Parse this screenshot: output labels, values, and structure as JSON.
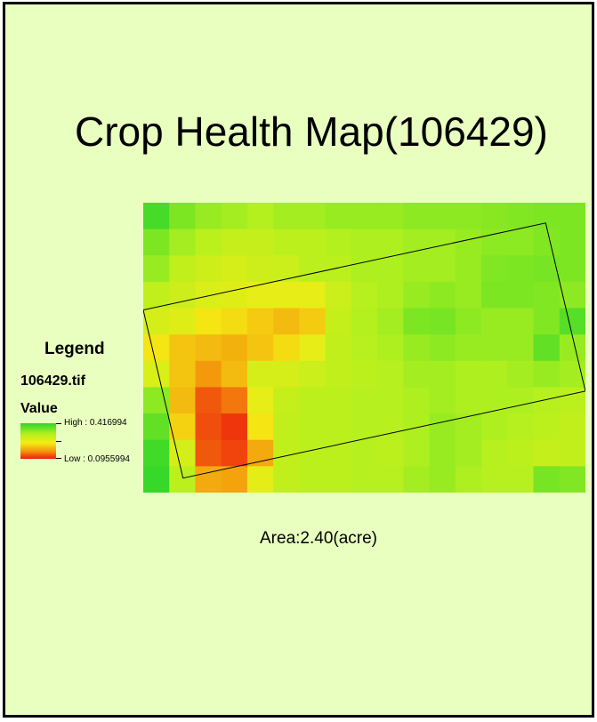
{
  "map": {
    "title": "Crop Health Map(106429)",
    "area_label": "Area:2.40(acre)",
    "background_color": "#e9ffc0",
    "raster": {
      "rows": 11,
      "cols": 17,
      "value_range": [
        0.0955994,
        0.416994
      ],
      "note_colors": "values are read as levels 0 (low, red) to 1 (high, green)",
      "grid": [
        [
          0.95,
          0.85,
          0.8,
          0.78,
          0.75,
          0.78,
          0.78,
          0.8,
          0.8,
          0.8,
          0.82,
          0.82,
          0.82,
          0.83,
          0.84,
          0.85,
          0.85
        ],
        [
          0.85,
          0.78,
          0.72,
          0.68,
          0.68,
          0.72,
          0.72,
          0.75,
          0.76,
          0.76,
          0.78,
          0.78,
          0.8,
          0.82,
          0.82,
          0.84,
          0.85
        ],
        [
          0.8,
          0.7,
          0.65,
          0.62,
          0.65,
          0.66,
          0.72,
          0.72,
          0.76,
          0.76,
          0.78,
          0.78,
          0.8,
          0.84,
          0.85,
          0.86,
          0.85
        ],
        [
          0.7,
          0.65,
          0.6,
          0.58,
          0.55,
          0.55,
          0.55,
          0.66,
          0.74,
          0.76,
          0.8,
          0.82,
          0.8,
          0.85,
          0.85,
          0.84,
          0.82
        ],
        [
          0.62,
          0.58,
          0.48,
          0.45,
          0.4,
          0.35,
          0.4,
          0.68,
          0.75,
          0.78,
          0.85,
          0.86,
          0.82,
          0.8,
          0.8,
          0.84,
          0.92
        ],
        [
          0.48,
          0.38,
          0.35,
          0.32,
          0.38,
          0.45,
          0.55,
          0.7,
          0.74,
          0.76,
          0.8,
          0.82,
          0.8,
          0.8,
          0.8,
          0.9,
          0.8
        ],
        [
          0.6,
          0.38,
          0.25,
          0.35,
          0.62,
          0.62,
          0.66,
          0.7,
          0.72,
          0.74,
          0.78,
          0.78,
          0.76,
          0.76,
          0.78,
          0.8,
          0.78
        ],
        [
          0.82,
          0.35,
          0.12,
          0.18,
          0.55,
          0.68,
          0.72,
          0.72,
          0.74,
          0.74,
          0.76,
          0.78,
          0.76,
          0.76,
          0.76,
          0.74,
          0.72
        ],
        [
          0.9,
          0.42,
          0.1,
          0.05,
          0.48,
          0.7,
          0.72,
          0.72,
          0.74,
          0.74,
          0.76,
          0.8,
          0.78,
          0.76,
          0.74,
          0.72,
          0.7
        ],
        [
          0.96,
          0.62,
          0.12,
          0.08,
          0.3,
          0.7,
          0.72,
          0.72,
          0.74,
          0.72,
          0.76,
          0.8,
          0.78,
          0.74,
          0.72,
          0.68,
          0.7
        ],
        [
          0.98,
          0.72,
          0.3,
          0.28,
          0.56,
          0.7,
          0.72,
          0.72,
          0.74,
          0.74,
          0.78,
          0.8,
          0.76,
          0.74,
          0.74,
          0.86,
          0.84
        ]
      ],
      "field_boundary": [
        [
          0.0,
          0.37
        ],
        [
          0.91,
          0.07
        ],
        [
          1.0,
          0.65
        ],
        [
          0.09,
          0.95
        ]
      ]
    }
  },
  "legend": {
    "heading": "Legend",
    "layer": "106429.tif",
    "field": "Value",
    "high_label": "High : 0.416994",
    "low_label": "Low : 0.0955994",
    "colors": [
      "#2bd62b",
      "#b3f01e",
      "#f4ec14",
      "#f39a0c",
      "#ee1c0c"
    ]
  }
}
